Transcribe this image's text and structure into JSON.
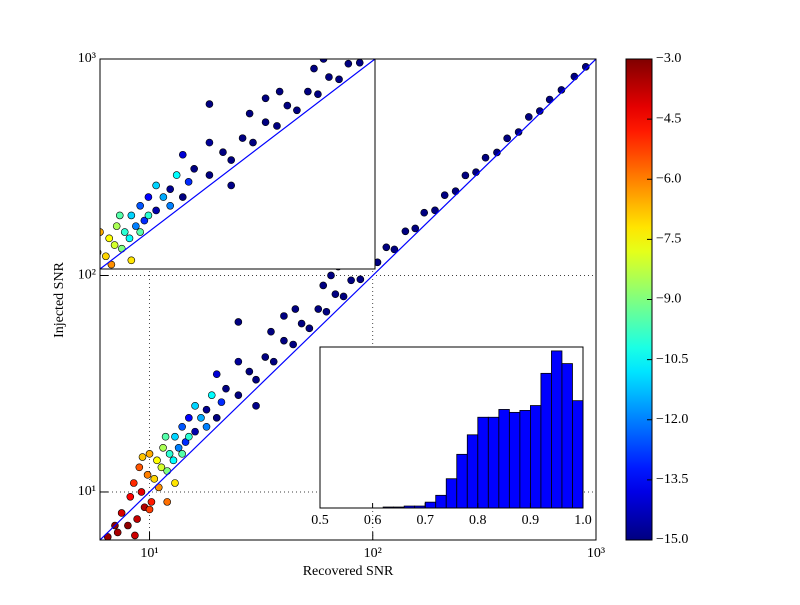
{
  "chart_data": [
    {
      "type": "scatter",
      "xlabel": "Recovered SNR",
      "ylabel": "Injected SNR",
      "x": [
        6.5,
        7,
        7.2,
        7.5,
        8,
        8.2,
        8.5,
        8.6,
        8.8,
        9,
        9.2,
        9.3,
        9.5,
        9.8,
        10,
        10,
        10.2,
        10.5,
        10.8,
        11,
        11.3,
        11.5,
        11.8,
        12,
        12.3,
        12.8,
        13,
        13.5,
        14,
        14,
        14.5,
        15,
        15,
        16,
        16,
        17,
        18,
        18,
        19,
        20,
        21,
        22,
        25,
        25,
        25,
        28,
        30,
        30,
        33,
        35,
        36,
        40,
        44,
        45,
        48,
        52,
        57,
        60,
        62,
        68,
        70,
        74,
        80,
        88,
        95,
        105,
        115,
        125,
        140,
        155,
        170,
        190,
        210,
        235,
        260,
        290,
        320,
        360,
        400,
        450,
        500,
        560,
        620,
        700,
        800,
        900,
        12,
        13,
        20,
        40,
        65,
        85
      ],
      "y": [
        6.2,
        7,
        6.5,
        8,
        7,
        9.5,
        11,
        6.3,
        7.5,
        13,
        10,
        14.5,
        8.5,
        12,
        15,
        8.3,
        9,
        11.5,
        14,
        10.5,
        13,
        16,
        18,
        12.5,
        15,
        14,
        18,
        16,
        20,
        15,
        17,
        22,
        18,
        25,
        19,
        22,
        20,
        24,
        28,
        22,
        26,
        30,
        28,
        40,
        61,
        36,
        33,
        25,
        42,
        55,
        40,
        50,
        48,
        70,
        60,
        57,
        70,
        90,
        68,
        82,
        110,
        80,
        95,
        96,
        112,
        115,
        135,
        132,
        160,
        165,
        195,
        200,
        235,
        245,
        290,
        300,
        350,
        370,
        430,
        460,
        540,
        575,
        650,
        720,
        830,
        920,
        9,
        11,
        35,
        65,
        100,
        130
      ],
      "c": [
        -3.3,
        -3.1,
        -3.5,
        -4,
        -3.2,
        -4.5,
        -5,
        -3.9,
        -3.8,
        -5.5,
        -4.2,
        -6.8,
        -3.6,
        -6,
        -6.5,
        -5.2,
        -4.8,
        -7,
        -7.5,
        -6.2,
        -8,
        -8.5,
        -9.5,
        -9,
        -10,
        -10.5,
        -11,
        -12,
        -12.5,
        -9.5,
        -13,
        -13.5,
        -10,
        -11,
        -14.5,
        -11.5,
        -12,
        -14.8,
        -10.5,
        -15,
        -13,
        -15,
        -15,
        -14.7,
        -15,
        -15,
        -15,
        -14.9,
        -15,
        -15,
        -15,
        -15,
        -15,
        -15,
        -15,
        -15,
        -15,
        -15,
        -15,
        -15,
        -15,
        -15,
        -15,
        -15,
        -15,
        -15,
        -15,
        -15,
        -15,
        -15,
        -15,
        -15,
        -15,
        -15,
        -15,
        -15,
        -15,
        -15,
        -15,
        -15,
        -15,
        -15,
        -15,
        -15,
        -15,
        -15,
        -5.8,
        -7.2,
        -14,
        -15,
        -15,
        -15
      ],
      "colormap": "jet",
      "log_x": true,
      "log_y": true,
      "grid": true,
      "diagonal_color": "#0000ff",
      "xlim": [
        6,
        1000
      ],
      "ylim": [
        6,
        1000
      ],
      "xticks": [
        {
          "value": 10,
          "label": "10¹"
        },
        {
          "value": 100,
          "label": "10²"
        },
        {
          "value": 1000,
          "label": "10³"
        }
      ],
      "yticks": [
        {
          "value": 10,
          "label": "10¹"
        },
        {
          "value": 100,
          "label": "10²"
        },
        {
          "value": 1000,
          "label": "10³"
        }
      ],
      "colorbar": {
        "lim": [
          -15,
          -3
        ],
        "ticks": [
          {
            "value": -3,
            "label": "−3.0"
          },
          {
            "value": -4.5,
            "label": "−4.5"
          },
          {
            "value": -6,
            "label": "−6.0"
          },
          {
            "value": -7.5,
            "label": "−7.5"
          },
          {
            "value": -9,
            "label": "−9.0"
          },
          {
            "value": -10.5,
            "label": "−10.5"
          },
          {
            "value": -12,
            "label": "−12.0"
          },
          {
            "value": -13.5,
            "label": "−13.5"
          },
          {
            "value": -15,
            "label": "−15.0"
          }
        ]
      }
    },
    {
      "type": "scatter",
      "log_x": true,
      "log_y": true,
      "xlim": [
        10,
        100
      ],
      "ylim": [
        10,
        100
      ]
    },
    {
      "type": "histogram",
      "color": "#0000ff",
      "bins": [
        0.5,
        0.52,
        0.54,
        0.56,
        0.58,
        0.6,
        0.62,
        0.64,
        0.66,
        0.68,
        0.7,
        0.72,
        0.74,
        0.76,
        0.78,
        0.8,
        0.82,
        0.84,
        0.86,
        0.88,
        0.9,
        0.92,
        0.94,
        0.96,
        0.98,
        1.0
      ],
      "values": [
        0,
        0,
        0,
        0,
        0,
        0,
        1,
        1,
        2,
        2,
        6,
        13,
        30,
        55,
        75,
        93,
        93,
        101,
        98,
        100,
        105,
        138,
        161,
        148,
        110
      ],
      "xlim": [
        0.5,
        1.0
      ],
      "ylim": [
        0,
        165
      ],
      "xticks": [
        0.5,
        0.6,
        0.7,
        0.8,
        0.9,
        {
          "value": 1,
          "label": "1.0"
        }
      ]
    }
  ]
}
